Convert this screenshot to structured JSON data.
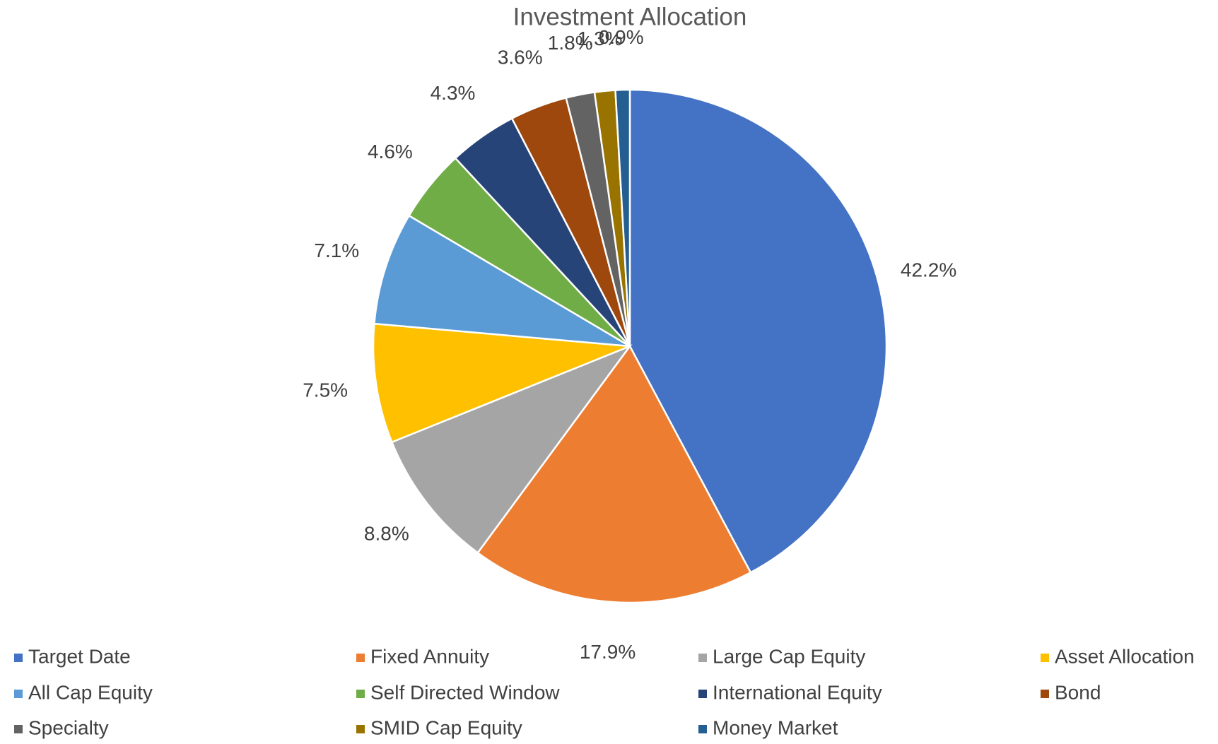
{
  "chart_data": {
    "type": "pie",
    "title": "Investment Allocation",
    "categories": [
      "Target Date",
      "Fixed Annuity",
      "Large Cap Equity",
      "Asset Allocation",
      "All Cap Equity",
      "Self Directed Window",
      "International Equity",
      "Bond",
      "Specialty",
      "SMID Cap Equity",
      "Money Market"
    ],
    "values": [
      42.2,
      17.9,
      8.8,
      7.5,
      7.1,
      4.6,
      4.3,
      3.6,
      1.8,
      1.3,
      0.9
    ],
    "value_labels": [
      "42.2%",
      "17.9%",
      "8.8%",
      "7.5%",
      "7.1%",
      "4.6%",
      "4.3%",
      "3.6%",
      "1.8%",
      "1.3%",
      "0.9%"
    ],
    "colors": [
      "#4472c4",
      "#ed7d31",
      "#a5a5a5",
      "#ffc000",
      "#5b9bd5",
      "#70ad47",
      "#264478",
      "#9e480e",
      "#636363",
      "#997300",
      "#255e91"
    ],
    "legend": "bottom"
  }
}
